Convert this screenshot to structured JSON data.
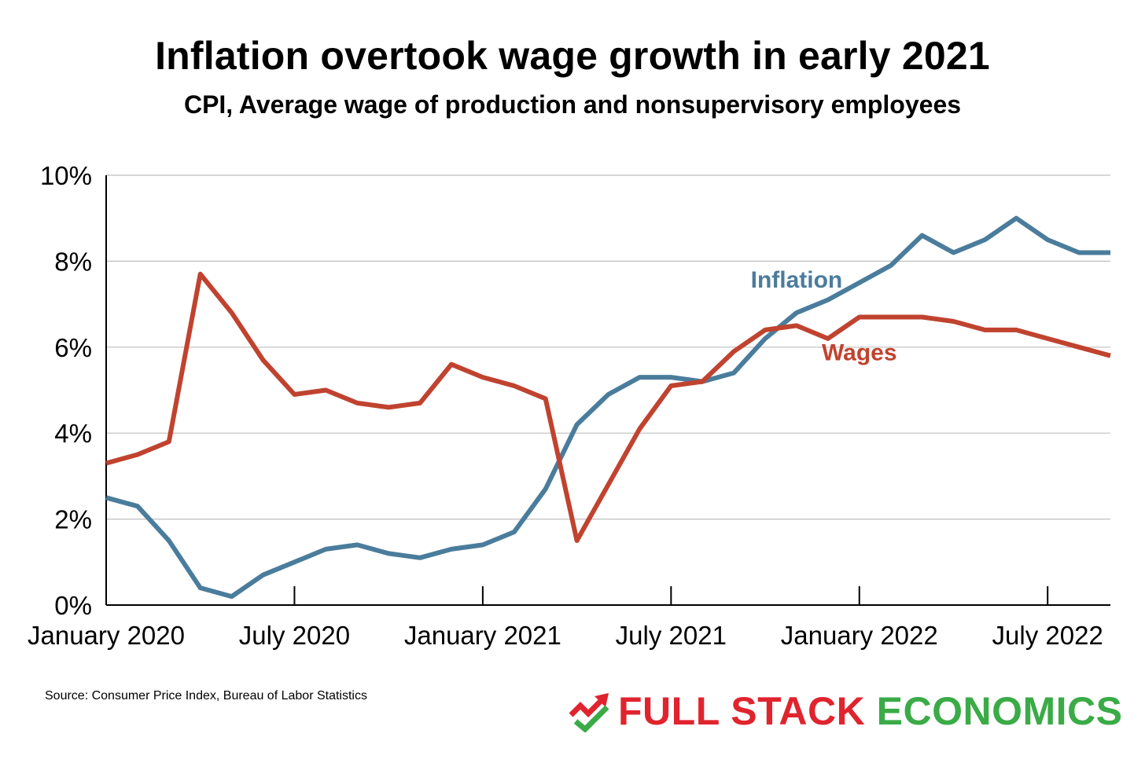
{
  "title": "Inflation overtook wage growth in early 2021",
  "subtitle": "CPI, Average wage of production and nonsupervisory employees",
  "source": "Source: Consumer Price Index, Bureau of Labor Statistics",
  "brand": {
    "word1": "FULL STACK",
    "word2": "ECONOMICS",
    "icon": "trend-arrow-check-icon",
    "color1": "#e0242e",
    "color2": "#3aab47"
  },
  "chart_data": {
    "type": "line",
    "x": [
      "2020-01",
      "2020-02",
      "2020-03",
      "2020-04",
      "2020-05",
      "2020-06",
      "2020-07",
      "2020-08",
      "2020-09",
      "2020-10",
      "2020-11",
      "2020-12",
      "2021-01",
      "2021-02",
      "2021-03",
      "2021-04",
      "2021-05",
      "2021-06",
      "2021-07",
      "2021-08",
      "2021-09",
      "2021-10",
      "2021-11",
      "2021-12",
      "2022-01",
      "2022-02",
      "2022-03",
      "2022-04",
      "2022-05",
      "2022-06",
      "2022-07",
      "2022-08",
      "2022-09"
    ],
    "x_ticks": [
      {
        "x": "2020-01",
        "label": "January 2020"
      },
      {
        "x": "2020-07",
        "label": "July 2020"
      },
      {
        "x": "2021-01",
        "label": "January 2021"
      },
      {
        "x": "2021-07",
        "label": "July 2021"
      },
      {
        "x": "2022-01",
        "label": "January 2022"
      },
      {
        "x": "2022-07",
        "label": "July 2022"
      }
    ],
    "y_ticks": [
      "0%",
      "2%",
      "4%",
      "6%",
      "8%",
      "10%"
    ],
    "ylim": [
      0,
      10
    ],
    "grid": "horizontal",
    "series": [
      {
        "name": "Inflation",
        "color": "#4a7c9c",
        "label_at": "2021-11",
        "values": [
          2.5,
          2.3,
          1.5,
          0.4,
          0.2,
          0.7,
          1.0,
          1.3,
          1.4,
          1.2,
          1.1,
          1.3,
          1.4,
          1.7,
          2.7,
          4.2,
          4.9,
          5.3,
          5.3,
          5.2,
          5.4,
          6.2,
          6.8,
          7.1,
          7.5,
          7.9,
          8.6,
          8.2,
          8.5,
          9.0,
          8.5,
          8.2,
          8.2
        ]
      },
      {
        "name": "Wages",
        "color": "#c0432f",
        "label_at": "2022-01",
        "values": [
          3.3,
          3.5,
          3.8,
          7.7,
          6.8,
          5.7,
          4.9,
          5.0,
          4.7,
          4.6,
          4.7,
          5.6,
          5.3,
          5.1,
          4.8,
          1.5,
          2.8,
          4.1,
          5.1,
          5.2,
          5.9,
          6.4,
          6.5,
          6.2,
          6.7,
          6.7,
          6.7,
          6.6,
          6.4,
          6.4,
          6.2,
          6.0,
          5.8
        ]
      }
    ]
  }
}
